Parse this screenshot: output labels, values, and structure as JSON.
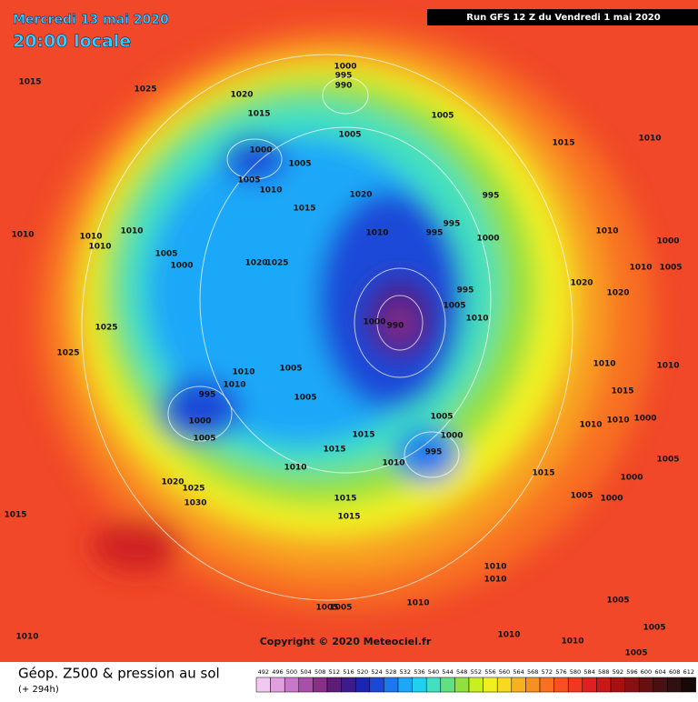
{
  "header": {
    "date": "Mercredi 13 mai 2020",
    "time": "20:00 locale",
    "run": "Run GFS 12 Z du Vendredi 1 mai 2020"
  },
  "map": {
    "copyright": "Copyright © 2020 Meteociel.fr",
    "isobar_labels": [
      1015,
      1025,
      1020,
      1015,
      1000,
      995,
      990,
      1005,
      1005,
      1000,
      1005,
      1005,
      1010,
      1020,
      995,
      995,
      995,
      1000,
      1015,
      1010,
      1010,
      1010,
      1010,
      1010,
      1005,
      1000,
      1020,
      1025,
      1015,
      1010,
      995,
      1005,
      1010,
      1000,
      990,
      1020,
      1020,
      1010,
      1000,
      1010,
      1005,
      1025,
      1025,
      995,
      1000,
      1005,
      1010,
      1010,
      1005,
      1005,
      1005,
      1000,
      995,
      1015,
      1015,
      1010,
      1010,
      1020,
      1025,
      1030,
      1015,
      1015,
      1015,
      1015,
      1005,
      1000,
      1000,
      1005,
      1010,
      1010,
      1010,
      1005,
      1005,
      1005,
      1010,
      1010,
      1005,
      1005,
      1010,
      1010,
      1010,
      1000,
      1010,
      1015,
      1010
    ]
  },
  "legend": {
    "title": "Géop. Z500 & pression au sol",
    "lead": "(+ 294h)",
    "levels": [
      492,
      496,
      500,
      504,
      508,
      512,
      516,
      520,
      524,
      528,
      532,
      536,
      540,
      544,
      548,
      552,
      556,
      560,
      564,
      568,
      572,
      576,
      580,
      584,
      588,
      592,
      596,
      600,
      604,
      608,
      612
    ],
    "colors": [
      "#f0c8f0",
      "#e0a0e0",
      "#c878c8",
      "#a850a8",
      "#883088",
      "#5c1c78",
      "#3c1c8c",
      "#1c24b4",
      "#1c48d8",
      "#1c78f0",
      "#1ca8f8",
      "#20d0f0",
      "#40e0c0",
      "#60e080",
      "#90e040",
      "#c8f020",
      "#f0f020",
      "#f8d820",
      "#f8b020",
      "#f89020",
      "#f87020",
      "#f85020",
      "#f03820",
      "#e02020",
      "#c81818",
      "#a81010",
      "#881010",
      "#681010",
      "#481010",
      "#301010",
      "#180808"
    ]
  }
}
